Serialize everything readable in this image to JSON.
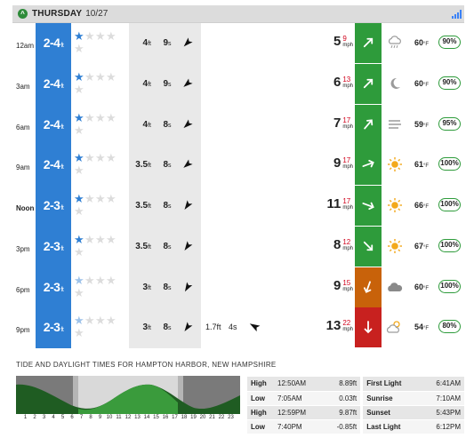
{
  "header": {
    "day": "THURSDAY",
    "date": "10/27"
  },
  "rows": [
    {
      "time": "12am",
      "bold": false,
      "surf": "2-4",
      "surf_unit": "ft",
      "stars_filled": 1,
      "stars_light": 0,
      "sw_h": "4",
      "sw_h_unit": "ft",
      "sw_p": "9",
      "sw_p_unit": "s",
      "sw_dir": 225,
      "sw2": null,
      "wind": "5",
      "gust": "9",
      "wind_unit": "mph",
      "wind_dir": 45,
      "wind_color": "#2e9b3b",
      "wx": "cloud-rain-icon",
      "temp": "60",
      "temp_unit": "°F",
      "prob": "90%"
    },
    {
      "time": "3am",
      "bold": false,
      "surf": "2-4",
      "surf_unit": "ft",
      "stars_filled": 1,
      "stars_light": 0,
      "sw_h": "4",
      "sw_h_unit": "ft",
      "sw_p": "9",
      "sw_p_unit": "s",
      "sw_dir": 230,
      "sw2": null,
      "wind": "6",
      "gust": "13",
      "wind_unit": "mph",
      "wind_dir": 45,
      "wind_color": "#2e9b3b",
      "wx": "moon-icon",
      "temp": "60",
      "temp_unit": "°F",
      "prob": "90%"
    },
    {
      "time": "6am",
      "bold": false,
      "surf": "2-4",
      "surf_unit": "ft",
      "stars_filled": 1,
      "stars_light": 0,
      "sw_h": "4",
      "sw_h_unit": "ft",
      "sw_p": "8",
      "sw_p_unit": "s",
      "sw_dir": 228,
      "sw2": null,
      "wind": "7",
      "gust": "17",
      "wind_unit": "mph",
      "wind_dir": 40,
      "wind_color": "#2e9b3b",
      "wx": "fog-icon",
      "temp": "59",
      "temp_unit": "°F",
      "prob": "95%"
    },
    {
      "time": "9am",
      "bold": false,
      "surf": "2-4",
      "surf_unit": "ft",
      "stars_filled": 1,
      "stars_light": 0,
      "sw_h": "3.5",
      "sw_h_unit": "ft",
      "sw_p": "8",
      "sw_p_unit": "s",
      "sw_dir": 230,
      "sw2": null,
      "wind": "9",
      "gust": "17",
      "wind_unit": "mph",
      "wind_dir": 70,
      "wind_color": "#2e9b3b",
      "wx": "sun-icon",
      "temp": "61",
      "temp_unit": "°F",
      "prob": "100%"
    },
    {
      "time": "Noon",
      "bold": true,
      "surf": "2-3",
      "surf_unit": "ft",
      "stars_filled": 1,
      "stars_light": 0,
      "sw_h": "3.5",
      "sw_h_unit": "ft",
      "sw_p": "8",
      "sw_p_unit": "s",
      "sw_dir": 215,
      "sw2": null,
      "wind": "11",
      "gust": "17",
      "wind_unit": "mph",
      "wind_dir": 110,
      "wind_color": "#2e9b3b",
      "wx": "sun-icon",
      "temp": "66",
      "temp_unit": "°F",
      "prob": "100%"
    },
    {
      "time": "3pm",
      "bold": false,
      "surf": "2-3",
      "surf_unit": "ft",
      "stars_filled": 1,
      "stars_light": 0,
      "sw_h": "3.5",
      "sw_h_unit": "ft",
      "sw_p": "8",
      "sw_p_unit": "s",
      "sw_dir": 215,
      "sw2": null,
      "wind": "8",
      "gust": "12",
      "wind_unit": "mph",
      "wind_dir": 135,
      "wind_color": "#2e9b3b",
      "wx": "sun-icon",
      "temp": "67",
      "temp_unit": "°F",
      "prob": "100%"
    },
    {
      "time": "6pm",
      "bold": false,
      "surf": "2-3",
      "surf_unit": "ft",
      "stars_filled": 0,
      "stars_light": 1,
      "sw_h": "3",
      "sw_h_unit": "ft",
      "sw_p": "8",
      "sw_p_unit": "s",
      "sw_dir": 210,
      "sw2": null,
      "wind": "9",
      "gust": "15",
      "wind_unit": "mph",
      "wind_dir": 200,
      "wind_color": "#c8620a",
      "wx": "cloud-icon",
      "temp": "60",
      "temp_unit": "°F",
      "prob": "100%"
    },
    {
      "time": "9pm",
      "bold": false,
      "surf": "2-3",
      "surf_unit": "ft",
      "stars_filled": 0,
      "stars_light": 1,
      "sw_h": "3",
      "sw_h_unit": "ft",
      "sw_p": "8",
      "sw_p_unit": "s",
      "sw_dir": 215,
      "sw2": {
        "h": "1.7",
        "h_unit": "ft",
        "p": "4",
        "p_unit": "s",
        "dir": 300
      },
      "wind": "13",
      "gust": "22",
      "wind_unit": "mph",
      "wind_dir": 180,
      "wind_color": "#c8211f",
      "wx": "partly-cloudy-icon",
      "temp": "54",
      "temp_unit": "°F",
      "prob": "80%"
    }
  ],
  "tide": {
    "title": "TIDE AND DAYLIGHT TIMES FOR HAMPTON HARBOR, NEW HAMPSHIRE",
    "hours": [
      "1",
      "2",
      "3",
      "4",
      "5",
      "6",
      "7",
      "8",
      "9",
      "10",
      "11",
      "12",
      "13",
      "14",
      "15",
      "16",
      "17",
      "18",
      "19",
      "20",
      "21",
      "22",
      "23"
    ],
    "table": [
      {
        "type": "High",
        "time": "12:50AM",
        "height": "8.89ft",
        "label": "First Light",
        "value": "6:41AM"
      },
      {
        "type": "Low",
        "time": "7:05AM",
        "height": "0.03ft",
        "label": "Sunrise",
        "value": "7:10AM"
      },
      {
        "type": "High",
        "time": "12:59PM",
        "height": "9.87ft",
        "label": "Sunset",
        "value": "5:43PM"
      },
      {
        "type": "Low",
        "time": "7:40PM",
        "height": "-0.85ft",
        "label": "Last Light",
        "value": "6:12PM"
      }
    ]
  },
  "colors": {
    "surf": "#2f7fd3",
    "star": "#2f7fd3",
    "star_light": "#9ec3ea",
    "star_empty": "#dcdcdc",
    "tide_dark": "#1f5c22",
    "tide_green": "#3a9b3c"
  }
}
